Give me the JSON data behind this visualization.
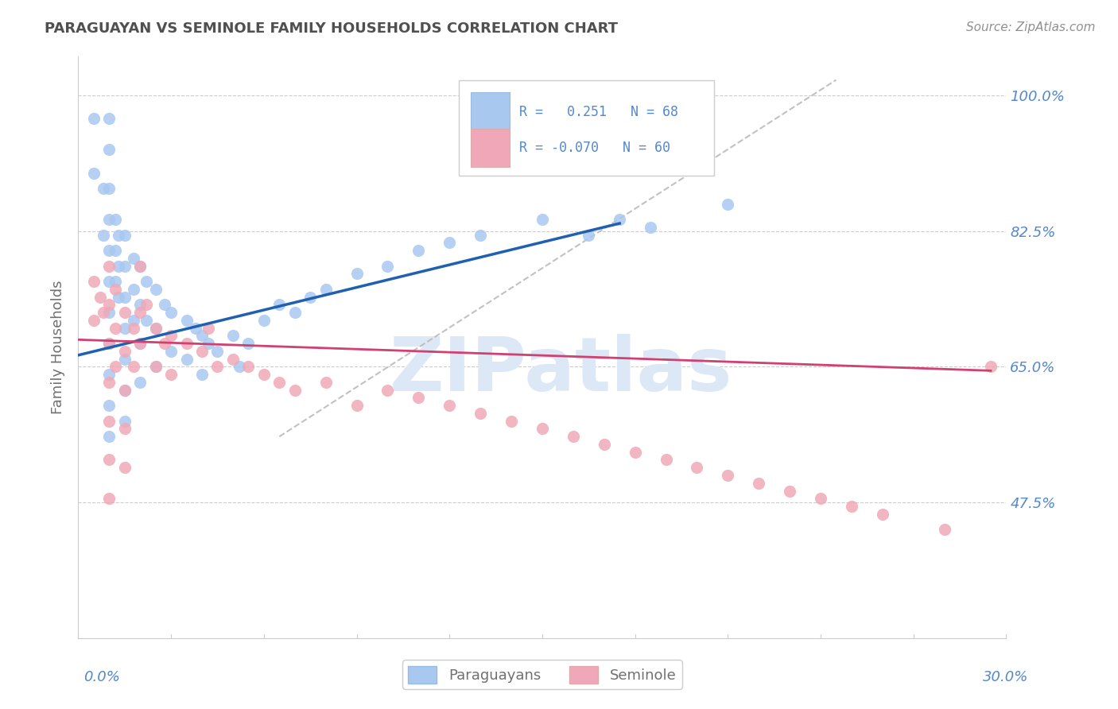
{
  "title": "PARAGUAYAN VS SEMINOLE FAMILY HOUSEHOLDS CORRELATION CHART",
  "source": "Source: ZipAtlas.com",
  "ylabel": "Family Households",
  "y_tick_labels": [
    "100.0%",
    "82.5%",
    "65.0%",
    "47.5%"
  ],
  "y_tick_values": [
    1.0,
    0.825,
    0.65,
    0.475
  ],
  "x_range": [
    0.0,
    0.3
  ],
  "y_range": [
    0.3,
    1.05
  ],
  "blue_color": "#a8c8f0",
  "pink_color": "#f0a8b8",
  "blue_line_color": "#2060b0",
  "pink_line_color": "#d04070",
  "title_color": "#505050",
  "source_color": "#909090",
  "axis_label_color": "#5588cc",
  "grid_color": "#cccccc",
  "watermark_text": "ZIPatlas",
  "watermark_color": "#dce8f5",
  "paraguayan_x": [
    0.005,
    0.005,
    0.008,
    0.008,
    0.01,
    0.01,
    0.01,
    0.01,
    0.01,
    0.01,
    0.01,
    0.01,
    0.01,
    0.01,
    0.01,
    0.012,
    0.012,
    0.012,
    0.013,
    0.013,
    0.013,
    0.015,
    0.015,
    0.015,
    0.015,
    0.015,
    0.015,
    0.015,
    0.018,
    0.018,
    0.018,
    0.02,
    0.02,
    0.02,
    0.02,
    0.022,
    0.022,
    0.025,
    0.025,
    0.025,
    0.028,
    0.03,
    0.03,
    0.035,
    0.035,
    0.038,
    0.04,
    0.04,
    0.042,
    0.045,
    0.05,
    0.052,
    0.055,
    0.06,
    0.065,
    0.07,
    0.075,
    0.08,
    0.09,
    0.1,
    0.11,
    0.12,
    0.13,
    0.15,
    0.165,
    0.175,
    0.185,
    0.21
  ],
  "paraguayan_y": [
    0.97,
    0.9,
    0.88,
    0.82,
    0.97,
    0.93,
    0.88,
    0.84,
    0.8,
    0.76,
    0.72,
    0.68,
    0.64,
    0.6,
    0.56,
    0.84,
    0.8,
    0.76,
    0.82,
    0.78,
    0.74,
    0.82,
    0.78,
    0.74,
    0.7,
    0.66,
    0.62,
    0.58,
    0.79,
    0.75,
    0.71,
    0.78,
    0.73,
    0.68,
    0.63,
    0.76,
    0.71,
    0.75,
    0.7,
    0.65,
    0.73,
    0.72,
    0.67,
    0.71,
    0.66,
    0.7,
    0.69,
    0.64,
    0.68,
    0.67,
    0.69,
    0.65,
    0.68,
    0.71,
    0.73,
    0.72,
    0.74,
    0.75,
    0.77,
    0.78,
    0.8,
    0.81,
    0.82,
    0.84,
    0.82,
    0.84,
    0.83,
    0.86
  ],
  "seminole_x": [
    0.005,
    0.005,
    0.007,
    0.008,
    0.01,
    0.01,
    0.01,
    0.01,
    0.01,
    0.01,
    0.01,
    0.012,
    0.012,
    0.012,
    0.015,
    0.015,
    0.015,
    0.015,
    0.015,
    0.018,
    0.018,
    0.02,
    0.02,
    0.02,
    0.022,
    0.025,
    0.025,
    0.028,
    0.03,
    0.03,
    0.035,
    0.04,
    0.042,
    0.045,
    0.05,
    0.055,
    0.06,
    0.065,
    0.07,
    0.08,
    0.09,
    0.1,
    0.11,
    0.12,
    0.13,
    0.14,
    0.15,
    0.16,
    0.17,
    0.18,
    0.19,
    0.2,
    0.21,
    0.22,
    0.23,
    0.24,
    0.25,
    0.26,
    0.28,
    0.295
  ],
  "seminole_y": [
    0.76,
    0.71,
    0.74,
    0.72,
    0.78,
    0.73,
    0.68,
    0.63,
    0.58,
    0.53,
    0.48,
    0.75,
    0.7,
    0.65,
    0.72,
    0.67,
    0.62,
    0.57,
    0.52,
    0.7,
    0.65,
    0.68,
    0.72,
    0.78,
    0.73,
    0.7,
    0.65,
    0.68,
    0.69,
    0.64,
    0.68,
    0.67,
    0.7,
    0.65,
    0.66,
    0.65,
    0.64,
    0.63,
    0.62,
    0.63,
    0.6,
    0.62,
    0.61,
    0.6,
    0.59,
    0.58,
    0.57,
    0.56,
    0.55,
    0.54,
    0.53,
    0.52,
    0.51,
    0.5,
    0.49,
    0.48,
    0.47,
    0.46,
    0.44,
    0.65
  ],
  "blue_trend_x": [
    0.0,
    0.175
  ],
  "blue_trend_y": [
    0.665,
    0.835
  ],
  "pink_trend_x": [
    0.0,
    0.295
  ],
  "pink_trend_y": [
    0.685,
    0.645
  ],
  "ref_line_x": [
    0.065,
    0.245
  ],
  "ref_line_y": [
    0.56,
    1.02
  ]
}
